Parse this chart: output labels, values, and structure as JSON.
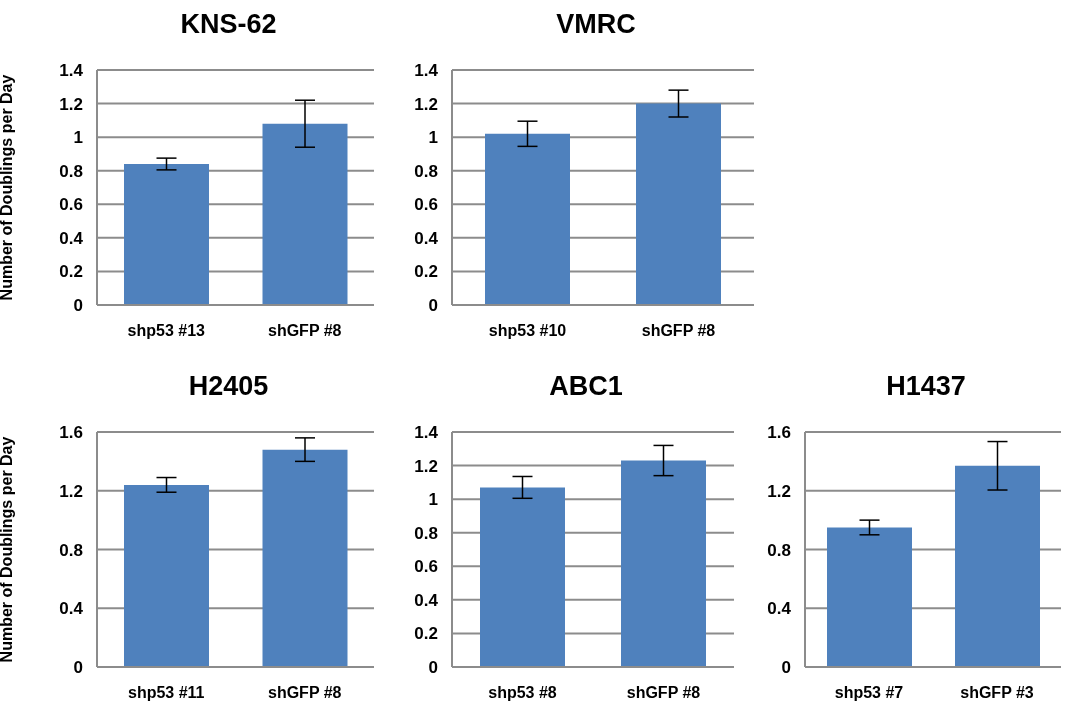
{
  "chart_data": [
    {
      "type": "bar",
      "title": "KNS-62",
      "ylabel": "Number of Doublings per Day",
      "categories": [
        "shp53 #13",
        "shGFP #8"
      ],
      "values": [
        0.84,
        1.08
      ],
      "errors": [
        0.035,
        0.14
      ],
      "color": "#4f81bd",
      "ylim": [
        0,
        1.4
      ],
      "yticks": [
        0,
        0.2,
        0.4,
        0.6,
        0.8,
        1,
        1.2,
        1.4
      ],
      "grid": "y"
    },
    {
      "type": "bar",
      "title": "VMRC",
      "categories": [
        "shp53 #10",
        "shGFP #8"
      ],
      "values": [
        1.02,
        1.2
      ],
      "errors": [
        0.075,
        0.08
      ],
      "color": "#4f81bd",
      "ylim": [
        0,
        1.4
      ],
      "yticks": [
        0,
        0.2,
        0.4,
        0.6,
        0.8,
        1,
        1.2,
        1.4
      ],
      "grid": "y"
    },
    {
      "type": "bar",
      "title": "H2405",
      "ylabel": "Number of Doublings per Day",
      "categories": [
        "shp53 #11",
        "shGFP #8"
      ],
      "values": [
        1.24,
        1.48
      ],
      "errors": [
        0.05,
        0.08
      ],
      "color": "#4f81bd",
      "ylim": [
        0,
        1.6
      ],
      "yticks": [
        0,
        0.4,
        0.8,
        1.2,
        1.6
      ],
      "grid": "y"
    },
    {
      "type": "bar",
      "title": "ABC1",
      "categories": [
        "shp53 #8",
        "shGFP #8"
      ],
      "values": [
        1.07,
        1.23
      ],
      "errors": [
        0.065,
        0.09
      ],
      "color": "#4f81bd",
      "ylim": [
        0,
        1.4
      ],
      "yticks": [
        0,
        0.2,
        0.4,
        0.6,
        0.8,
        1,
        1.2,
        1.4
      ],
      "grid": "y"
    },
    {
      "type": "bar",
      "title": "H1437",
      "categories": [
        "shp53 #7",
        "shGFP #3"
      ],
      "values": [
        0.95,
        1.37
      ],
      "errors": [
        0.05,
        0.165
      ],
      "color": "#4f81bd",
      "ylim": [
        0,
        1.6
      ],
      "yticks": [
        0,
        0.4,
        0.8,
        1.2,
        1.6
      ],
      "grid": "y"
    }
  ]
}
